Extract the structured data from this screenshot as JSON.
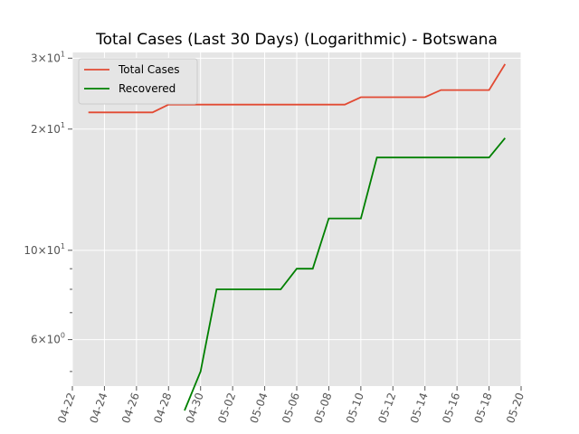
{
  "chart_data": {
    "type": "line",
    "title": "Total Cases (Last 30 Days) (Logarithmic) - Botswana",
    "xlabel": "",
    "ylabel": "",
    "yscale": "log",
    "ylim": [
      4.6,
      31
    ],
    "xlim": [
      "2020-04-22",
      "2020-05-20"
    ],
    "grid": true,
    "legend_position": "top-left",
    "x_tick_labels": [
      "04-22",
      "04-24",
      "04-26",
      "04-28",
      "04-30",
      "05-02",
      "05-04",
      "05-06",
      "05-08",
      "05-10",
      "05-12",
      "05-14",
      "05-16",
      "05-18",
      "05-20"
    ],
    "y_tick_labels": [
      {
        "value": 6,
        "base": "6",
        "exp": "0"
      },
      {
        "value": 10,
        "base": "10",
        "exp": "1"
      },
      {
        "value": 20,
        "base": "2",
        "exp": "1"
      },
      {
        "value": 30,
        "base": "3",
        "exp": "1"
      }
    ],
    "x": [
      "2020-04-23",
      "2020-04-24",
      "2020-04-25",
      "2020-04-26",
      "2020-04-27",
      "2020-04-28",
      "2020-04-29",
      "2020-04-30",
      "2020-05-01",
      "2020-05-02",
      "2020-05-03",
      "2020-05-04",
      "2020-05-05",
      "2020-05-06",
      "2020-05-07",
      "2020-05-08",
      "2020-05-09",
      "2020-05-10",
      "2020-05-11",
      "2020-05-12",
      "2020-05-13",
      "2020-05-14",
      "2020-05-15",
      "2020-05-16",
      "2020-05-17",
      "2020-05-18",
      "2020-05-19"
    ],
    "series": [
      {
        "name": "Total Cases",
        "color": "#e24a33",
        "values": [
          22,
          22,
          22,
          22,
          22,
          23,
          23,
          23,
          23,
          23,
          23,
          23,
          23,
          23,
          23,
          23,
          23,
          24,
          24,
          24,
          24,
          24,
          25,
          25,
          25,
          25,
          29
        ]
      },
      {
        "name": "Recovered",
        "color": "#008000",
        "values": [
          null,
          null,
          null,
          null,
          null,
          null,
          4,
          5,
          8,
          8,
          8,
          8,
          8,
          9,
          9,
          12,
          12,
          12,
          17,
          17,
          17,
          17,
          17,
          17,
          17,
          17,
          19
        ]
      }
    ]
  }
}
